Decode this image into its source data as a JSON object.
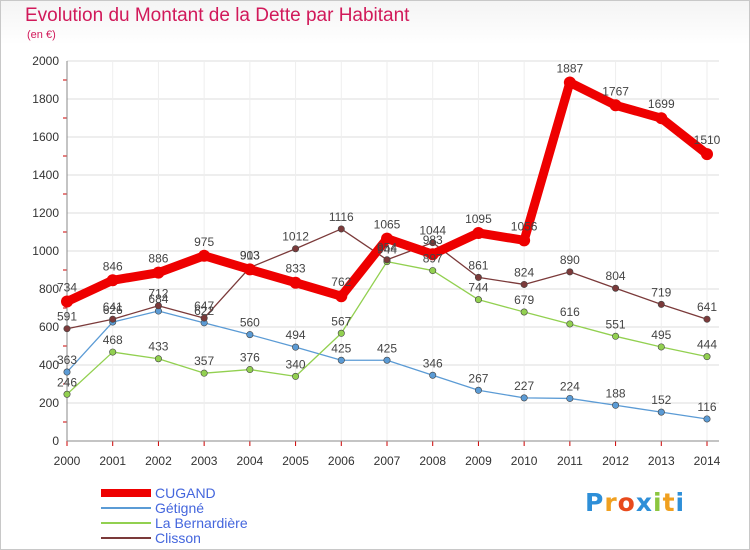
{
  "header": {
    "title": "Evolution du Montant de la Dette par Habitant",
    "unit_note": "(en €)"
  },
  "brand": {
    "text": "Proxiti",
    "letters": [
      {
        "ch": "P",
        "color": "#2e8fd8"
      },
      {
        "ch": "r",
        "color": "#f0a020"
      },
      {
        "ch": "o",
        "color": "#e84a1c"
      },
      {
        "ch": "x",
        "color": "#2e8fd8"
      },
      {
        "ch": "i",
        "color": "#8cc63f"
      },
      {
        "ch": "t",
        "color": "#f0a020"
      },
      {
        "ch": "i",
        "color": "#2e8fd8"
      }
    ]
  },
  "chart_data": {
    "type": "line",
    "title": "Evolution du Montant de la Dette par Habitant",
    "subtitle": "(en €)",
    "xlabel": "",
    "ylabel": "",
    "x": [
      "2000",
      "2001",
      "2002",
      "2003",
      "2004",
      "2005",
      "2006",
      "2007",
      "2008",
      "2009",
      "2010",
      "2011",
      "2012",
      "2013",
      "2014"
    ],
    "ylim": [
      0,
      2000
    ],
    "yticks": [
      0,
      200,
      400,
      600,
      800,
      1000,
      1200,
      1400,
      1600,
      1800,
      2000
    ],
    "grid": true,
    "legend_position": "bottom-left",
    "series": [
      {
        "name": "CUGAND",
        "color": "#ee0000",
        "emphasis": true,
        "values": [
          734,
          846,
          886,
          975,
          903,
          833,
          762,
          1065,
          983,
          1095,
          1056,
          1887,
          1767,
          1699,
          1510
        ]
      },
      {
        "name": "Gétigné",
        "color": "#5b9bd5",
        "values": [
          363,
          626,
          684,
          622,
          560,
          494,
          425,
          425,
          346,
          267,
          227,
          224,
          188,
          152,
          116
        ]
      },
      {
        "name": "La Bernardière",
        "color": "#92d050",
        "values": [
          246,
          468,
          433,
          357,
          376,
          340,
          567,
          944,
          897,
          744,
          679,
          616,
          551,
          495,
          444
        ]
      },
      {
        "name": "Clisson",
        "color": "#7b3a3a",
        "values": [
          591,
          641,
          712,
          647,
          913,
          1012,
          1116,
          954,
          1044,
          861,
          824,
          890,
          804,
          719,
          641
        ]
      }
    ]
  }
}
